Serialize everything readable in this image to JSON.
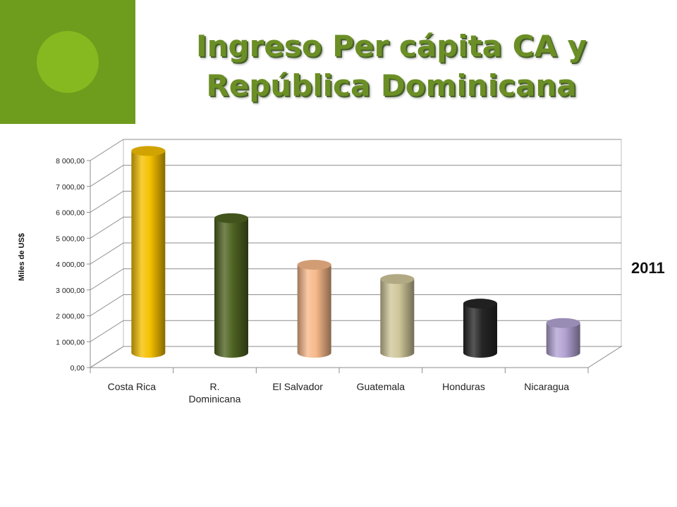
{
  "title_lines": [
    "Ingreso Per cápita CA y",
    "República Dominicana"
  ],
  "year_label": "2011",
  "colors": {
    "deco_square": "#6e9c1c",
    "deco_circle": "#86b820",
    "title": "#6b8f25"
  },
  "chart_data": {
    "type": "bar",
    "style": "3d-cylinder",
    "categories": [
      "Costa Rica",
      "R. Dominicana",
      "El Salvador",
      "Guatemala",
      "Honduras",
      "Nicaragua"
    ],
    "category_lines": [
      [
        "Costa Rica"
      ],
      [
        "R.",
        "Dominicana"
      ],
      [
        "El Salvador"
      ],
      [
        "Guatemala"
      ],
      [
        "Honduras"
      ],
      [
        "Nicaragua"
      ]
    ],
    "values": [
      7800,
      5200,
      3400,
      2850,
      1900,
      1150
    ],
    "colors": [
      "#f5c000",
      "#4e6320",
      "#f7b98a",
      "#cfc79a",
      "#262626",
      "#b3a3d4"
    ],
    "ylabel": "Miles de US$",
    "ylim": [
      0,
      8000
    ],
    "yticks": [
      0,
      1000,
      2000,
      3000,
      4000,
      5000,
      6000,
      7000,
      8000
    ],
    "ytick_labels": [
      "0,00",
      "1 000,00",
      "2 000,00",
      "3 000,00",
      "4 000,00",
      "5 000,00",
      "6 000,00",
      "7 000,00",
      "8 000,00"
    ],
    "grid": true,
    "legend": false
  }
}
